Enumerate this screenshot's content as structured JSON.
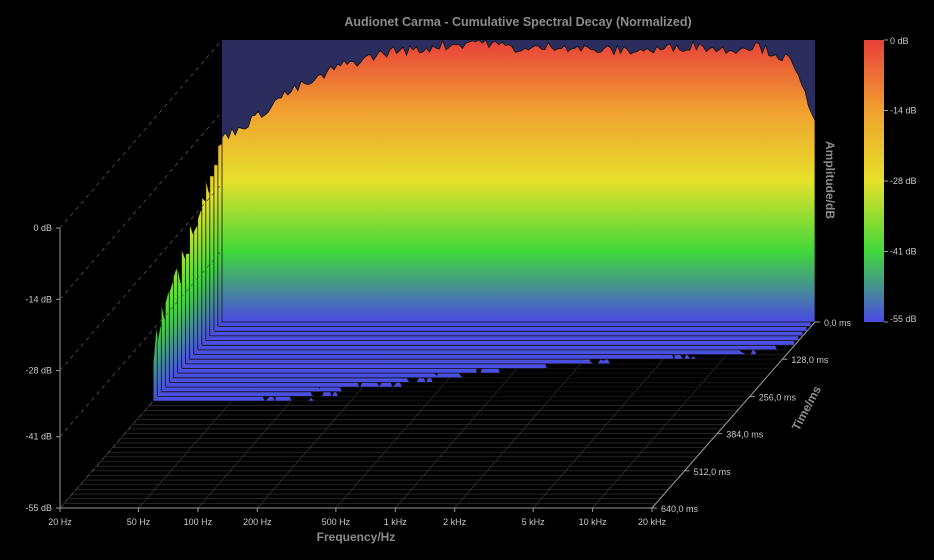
{
  "chart_data": {
    "type": "waterfall-3d",
    "title": "Audionet Carma - Cumulative Spectral Decay (Normalized)",
    "xlabel": "Frequency/Hz",
    "ylabel": "Amplitude/dB",
    "zlabel": "Time/ms",
    "x_ticks": [
      "20 Hz",
      "50 Hz",
      "100 Hz",
      "200 Hz",
      "500 Hz",
      "1 kHz",
      "2 kHz",
      "5 kHz",
      "10 kHz",
      "20 kHz"
    ],
    "x_tick_values": [
      20,
      50,
      100,
      200,
      500,
      1000,
      2000,
      5000,
      10000,
      20000
    ],
    "xlim": [
      20,
      20000
    ],
    "x_scale": "log",
    "y_ticks": [
      "0 dB",
      "-14 dB",
      "-28 dB",
      "-41 dB",
      "-55 dB"
    ],
    "y_tick_values": [
      0,
      -14,
      -28,
      -41,
      -55
    ],
    "ylim": [
      -55,
      0
    ],
    "z_ticks": [
      "0,0 ms",
      "128,0 ms",
      "256,0 ms",
      "384,0 ms",
      "512,0 ms",
      "640,0 ms"
    ],
    "z_tick_values": [
      0,
      128,
      256,
      384,
      512,
      640
    ],
    "zlim": [
      0,
      640
    ],
    "colorbar_ticks": [
      "0 dB",
      "-14 dB",
      "-28 dB",
      "-41 dB",
      "-55 dB"
    ],
    "colorbar_colors": [
      "#e8403a",
      "#f0a030",
      "#e6e02a",
      "#40d83a",
      "#4a4ae6"
    ],
    "series_time_ms": [
      0,
      16,
      32,
      48,
      64,
      80,
      96,
      112,
      128,
      144,
      160,
      176,
      192,
      208,
      224,
      240,
      256,
      272
    ],
    "base_frequency_points_hz": [
      20,
      25,
      30,
      35,
      40,
      50,
      60,
      70,
      80,
      100,
      120,
      150,
      200,
      250,
      300,
      400,
      500,
      700,
      1000,
      1500,
      2000,
      3000,
      5000,
      7000,
      10000,
      15000,
      20000
    ],
    "base_response_db": [
      -19,
      -17,
      -15,
      -13,
      -11,
      -9,
      -8,
      -6,
      -5,
      -4,
      -3,
      -2,
      -2,
      -1,
      -1,
      0,
      -1,
      -2,
      -1,
      -2,
      -2,
      -2,
      -1,
      -2,
      -1,
      -4,
      -15
    ],
    "grid": true,
    "legend": "colorbar-right",
    "background": "#000000",
    "wall_color": "#2a2d5e"
  }
}
